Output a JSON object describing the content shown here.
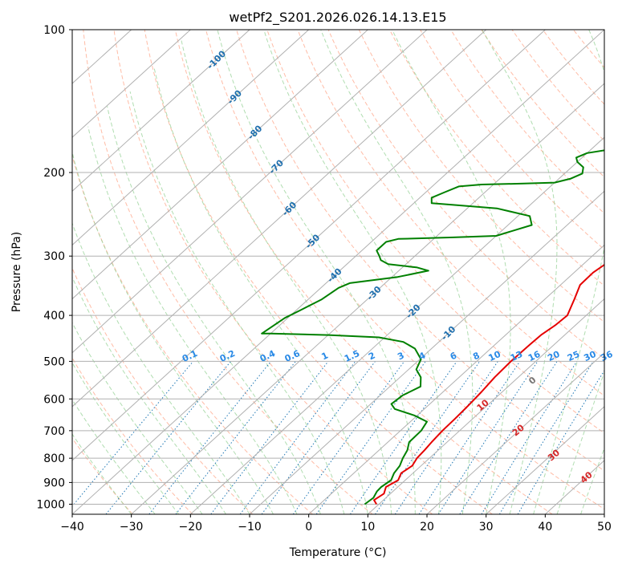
{
  "chart_data": {
    "type": "line",
    "title": "wetPf2_S201.2026.026.14.13.E15",
    "xlabel": "Temperature (°C)",
    "ylabel": "Pressure (hPa)",
    "xlim": [
      -40,
      50
    ],
    "ylim": [
      1050,
      100
    ],
    "y_scale": "log",
    "x_ticks": [
      -40,
      -30,
      -20,
      -10,
      0,
      10,
      20,
      30,
      40,
      50
    ],
    "y_ticks": [
      100,
      200,
      300,
      400,
      500,
      600,
      700,
      800,
      900,
      1000
    ],
    "grid": true,
    "colors": {
      "temperature": "#e50000",
      "dewpoint": "#008000",
      "isotherm": "#b0b0b0",
      "dry_adiabat": "#ff9f80",
      "moist_adiabat": "#8fce8f",
      "mixing_ratio": "#1f77b4",
      "isotherm_label": "#1f6fae",
      "mixing_label": "#2a8ae6",
      "adiabat_label": "#d62728"
    },
    "series": [
      {
        "key": "temperature",
        "points": [
          [
            9.6,
            1000
          ],
          [
            8.4,
            980
          ],
          [
            8.9,
            950
          ],
          [
            8.0,
            920
          ],
          [
            8.8,
            890
          ],
          [
            8.0,
            860
          ],
          [
            8.5,
            830
          ],
          [
            7.9,
            800
          ],
          [
            7.7,
            770
          ],
          [
            7.4,
            740
          ],
          [
            7.1,
            700
          ],
          [
            7.0,
            660
          ],
          [
            6.8,
            620
          ],
          [
            6.5,
            580
          ],
          [
            6.0,
            540
          ],
          [
            5.8,
            500
          ],
          [
            5.9,
            460
          ],
          [
            6.0,
            440
          ],
          [
            6.6,
            420
          ],
          [
            6.8,
            400
          ],
          [
            5.0,
            370
          ],
          [
            3.3,
            345
          ],
          [
            3.2,
            325
          ],
          [
            4.2,
            300
          ],
          [
            5.4,
            280
          ],
          [
            5.8,
            260
          ],
          [
            6.0,
            250
          ],
          [
            7.4,
            240
          ],
          [
            10.0,
            230
          ],
          [
            11.6,
            220
          ],
          [
            12.5,
            210
          ],
          [
            13.0,
            200
          ],
          [
            14.0,
            190
          ],
          [
            15.5,
            180
          ],
          [
            15.5,
            170
          ],
          [
            15.8,
            160
          ],
          [
            17.4,
            150
          ],
          [
            18.5,
            145
          ],
          [
            22.0,
            135
          ],
          [
            25.5,
            125
          ],
          [
            27.8,
            120
          ],
          [
            30.6,
            113
          ],
          [
            31.6,
            108
          ],
          [
            32.5,
            104
          ],
          [
            33.0,
            100
          ]
        ]
      },
      {
        "key": "dewpoint",
        "points": [
          [
            7.6,
            1000
          ],
          [
            7.9,
            970
          ],
          [
            7.3,
            940
          ],
          [
            7.2,
            920
          ],
          [
            7.6,
            890
          ],
          [
            6.8,
            860
          ],
          [
            6.4,
            830
          ],
          [
            5.5,
            800
          ],
          [
            4.8,
            770
          ],
          [
            3.6,
            740
          ],
          [
            3.5,
            700
          ],
          [
            2.8,
            670
          ],
          [
            -0.5,
            650
          ],
          [
            -5.0,
            630
          ],
          [
            -6.5,
            615
          ],
          [
            -6.2,
            590
          ],
          [
            -4.8,
            565
          ],
          [
            -6.5,
            540
          ],
          [
            -8.7,
            520
          ],
          [
            -9.8,
            495
          ],
          [
            -12.8,
            470
          ],
          [
            -16.0,
            455
          ],
          [
            -21.0,
            445
          ],
          [
            -30.0,
            440
          ],
          [
            -40.0,
            437
          ],
          [
            -41.5,
            437
          ],
          [
            -40.5,
            405
          ],
          [
            -39.3,
            390
          ],
          [
            -37.7,
            370
          ],
          [
            -37.0,
            350
          ],
          [
            -36.0,
            342
          ],
          [
            -29.0,
            332
          ],
          [
            -25.0,
            322
          ],
          [
            -27.5,
            317
          ],
          [
            -33.0,
            312
          ],
          [
            -35.0,
            306
          ],
          [
            -36.0,
            300
          ],
          [
            -37.5,
            292
          ],
          [
            -37.5,
            280
          ],
          [
            -36.0,
            276
          ],
          [
            -27.0,
            274
          ],
          [
            -20.0,
            272
          ],
          [
            -16.0,
            258
          ],
          [
            -18.0,
            247
          ],
          [
            -25.0,
            238
          ],
          [
            -33.0,
            234
          ],
          [
            -37.0,
            232
          ],
          [
            -38.0,
            226
          ],
          [
            -36.8,
            220
          ],
          [
            -35.5,
            214
          ],
          [
            -32.0,
            212
          ],
          [
            -25.0,
            211
          ],
          [
            -20.0,
            210
          ],
          [
            -18.0,
            206
          ],
          [
            -17.0,
            201
          ],
          [
            -18.0,
            195
          ],
          [
            -20.0,
            190
          ],
          [
            -21.0,
            186
          ],
          [
            -20.0,
            182
          ],
          [
            -16.0,
            178
          ],
          [
            -13.0,
            174
          ],
          [
            -11.0,
            170
          ],
          [
            -10.0,
            164
          ],
          [
            -9.0,
            156
          ],
          [
            -8.0,
            147
          ],
          [
            -7.5,
            140
          ],
          [
            -6.0,
            132
          ],
          [
            -4.0,
            125
          ],
          [
            -1.5,
            118
          ],
          [
            1.2,
            110
          ],
          [
            4.8,
            100
          ]
        ]
      }
    ],
    "isotherm_labels": [
      "-100",
      "-90",
      "-80",
      "-70",
      "-60",
      "-50",
      "-40",
      "-30",
      "-20",
      "-10"
    ],
    "mixing_ratio_labels": [
      "0.1",
      "0.2",
      "0.4",
      "0.6",
      "1",
      "1.5",
      "2",
      "3",
      "4",
      "6",
      "8",
      "10",
      "13",
      "16",
      "20",
      "25",
      "30",
      "36"
    ],
    "mixing_ratio_values": [
      0.1,
      0.2,
      0.4,
      0.6,
      1,
      1.5,
      2,
      3,
      4,
      6,
      8,
      10,
      13,
      16,
      20,
      25,
      30,
      36
    ],
    "adiabat_labels": [
      "0",
      "10",
      "20",
      "30",
      "40"
    ]
  }
}
